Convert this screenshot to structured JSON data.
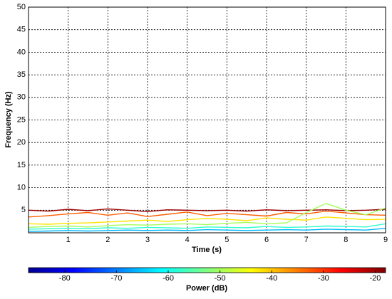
{
  "chart_data": {
    "type": "contour",
    "xlabel": "Time (s)",
    "ylabel": "Frequency (Hz)",
    "colorbar_label": "Power (dB)",
    "xlim": [
      0,
      9
    ],
    "xticks": [
      1,
      2,
      3,
      4,
      5,
      6,
      7,
      8,
      9
    ],
    "ylim": [
      0,
      50
    ],
    "yticks": [
      5,
      10,
      15,
      20,
      25,
      30,
      35,
      40,
      45,
      50
    ],
    "clim": [
      -87,
      -18
    ],
    "cticks": [
      -80,
      -70,
      -60,
      -50,
      -40,
      -30,
      -20
    ],
    "grid": true,
    "colormap": "jet",
    "x": [
      0,
      0.5,
      1,
      1.5,
      2,
      2.5,
      3,
      3.5,
      4,
      4.5,
      5,
      5.5,
      6,
      6.5,
      7,
      7.5,
      8,
      8.5,
      9
    ],
    "series": [
      {
        "power": -20,
        "values": [
          5,
          4.8,
          5.2,
          4.9,
          5.3,
          5.0,
          4.7,
          5.1,
          5.0,
          4.9,
          5.0,
          4.8,
          5.1,
          4.9,
          5.0,
          5.1,
          4.9,
          5.0,
          5.2
        ]
      },
      {
        "power": -33,
        "values": [
          3.5,
          3.8,
          4.2,
          4.5,
          3.9,
          4.4,
          3.6,
          4.1,
          4.6,
          3.8,
          4.3,
          4.0,
          3.7,
          4.5,
          4.2,
          4.8,
          4.4,
          4.0,
          3.9
        ]
      },
      {
        "power": -42,
        "values": [
          2,
          1.9,
          2.1,
          2.2,
          2.4,
          2.6,
          2.8,
          2.5,
          2.9,
          3.2,
          3.0,
          2.7,
          3.3,
          3.0,
          2.8,
          3.5,
          3.2,
          2.9,
          3.0
        ]
      },
      {
        "power": -50,
        "values": [
          1.2,
          1.4,
          1.5,
          1.3,
          1.6,
          1.8,
          1.7,
          1.9,
          2.0,
          1.8,
          2.1,
          2.3,
          2.0,
          2.2,
          4.5,
          6.5,
          5.0,
          4.0,
          5.5
        ]
      },
      {
        "power": -58,
        "values": [
          0.8,
          0.9,
          1.0,
          0.9,
          1.1,
          1.0,
          1.2,
          1.1,
          1.0,
          1.3,
          1.2,
          1.1,
          1.4,
          1.2,
          1.3,
          1.5,
          1.4,
          1.3,
          2
        ]
      },
      {
        "power": -66,
        "values": [
          0.3,
          0.4,
          0.5,
          0.4,
          0.5,
          0.6,
          0.5,
          0.6,
          0.5,
          0.7,
          0.6,
          0.5,
          0.6,
          0.7,
          0.6,
          0.8,
          0.7,
          0.6,
          1
        ]
      }
    ]
  }
}
